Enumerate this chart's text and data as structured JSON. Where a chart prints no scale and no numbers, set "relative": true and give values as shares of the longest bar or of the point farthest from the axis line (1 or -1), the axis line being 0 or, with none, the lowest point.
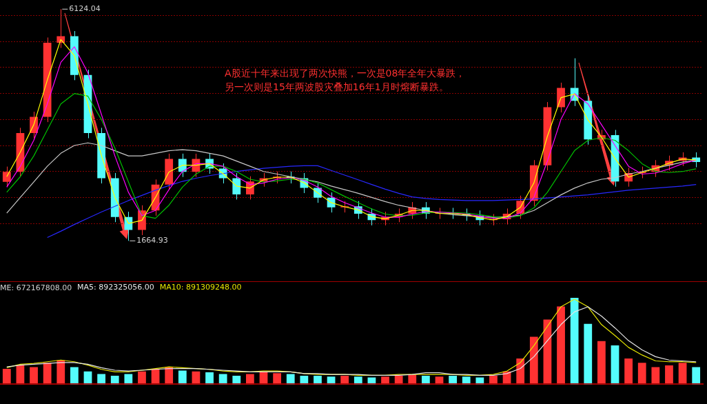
{
  "chart_data": [
    {
      "type": "candlestick",
      "categories": [
        null,
        null,
        null,
        null,
        null,
        null,
        null,
        null,
        null,
        null,
        null,
        null,
        null,
        null,
        null,
        null,
        null,
        null,
        null,
        null,
        null,
        null,
        null,
        null,
        null,
        null,
        null,
        null,
        null,
        null,
        null,
        null,
        null,
        null,
        null,
        null,
        null,
        null,
        null,
        null,
        null,
        null,
        null,
        null,
        null,
        null,
        null,
        null,
        null,
        null,
        null,
        null
      ],
      "ohlc": [
        [
          2800,
          3094,
          2700,
          2994
        ],
        [
          2994,
          3840,
          2894,
          3740
        ],
        [
          3740,
          4150,
          3640,
          4050
        ],
        [
          4050,
          5578,
          3950,
          5478
        ],
        [
          5478,
          6124.04,
          5378,
          5602
        ],
        [
          5602,
          5702,
          4757,
          4857
        ],
        [
          4857,
          4957,
          3640,
          3740
        ],
        [
          3740,
          3840,
          2770,
          2870
        ],
        [
          2870,
          2970,
          2025,
          2125
        ],
        [
          2125,
          2225,
          1664.93,
          1876
        ],
        [
          1876,
          2349,
          1776,
          2249
        ],
        [
          2249,
          2846,
          2149,
          2746
        ],
        [
          2746,
          3343,
          2646,
          3243
        ],
        [
          3243,
          3343,
          2894,
          2994
        ],
        [
          2994,
          3343,
          2894,
          3243
        ],
        [
          3243,
          3343,
          2956,
          3056
        ],
        [
          3056,
          3156,
          2770,
          2870
        ],
        [
          2870,
          2970,
          2460,
          2560
        ],
        [
          2560,
          2908,
          2460,
          2808
        ],
        [
          2808,
          2970,
          2708,
          2870
        ],
        [
          2870,
          3000,
          2770,
          2900
        ],
        [
          2900,
          3000,
          2770,
          2870
        ],
        [
          2870,
          2970,
          2584,
          2684
        ],
        [
          2684,
          2784,
          2397,
          2497
        ],
        [
          2497,
          2597,
          2211,
          2311
        ],
        [
          2311,
          2430,
          2211,
          2330
        ],
        [
          2330,
          2430,
          2087,
          2187
        ],
        [
          2187,
          2287,
          1963,
          2063
        ],
        [
          2063,
          2225,
          1963,
          2125
        ],
        [
          2125,
          2287,
          2025,
          2187
        ],
        [
          2187,
          2411,
          2087,
          2311
        ],
        [
          2311,
          2411,
          2087,
          2187
        ],
        [
          2187,
          2300,
          2087,
          2200
        ],
        [
          2200,
          2300,
          2087,
          2187
        ],
        [
          2187,
          2287,
          2050,
          2150
        ],
        [
          2150,
          2250,
          1963,
          2063
        ],
        [
          2063,
          2180,
          1963,
          2080
        ],
        [
          2080,
          2287,
          1980,
          2187
        ],
        [
          2187,
          2535,
          2087,
          2435
        ],
        [
          2435,
          3219,
          2335,
          3119
        ],
        [
          3119,
          4336,
          3019,
          4236
        ],
        [
          4236,
          4709,
          4136,
          4609
        ],
        [
          4609,
          5178,
          4260,
          4360
        ],
        [
          4360,
          4460,
          3516,
          3616
        ],
        [
          3616,
          3800,
          3516,
          3700
        ],
        [
          3700,
          3800,
          2708,
          2808
        ],
        [
          2808,
          3070,
          2708,
          2970
        ],
        [
          2970,
          3094,
          2870,
          2994
        ],
        [
          2994,
          3219,
          2894,
          3119
        ],
        [
          3119,
          3305,
          3019,
          3205
        ],
        [
          3205,
          3368,
          3105,
          3268
        ],
        [
          3268,
          3368,
          3081,
          3181
        ]
      ],
      "colors": [
        "#ff3232",
        "#ff3232",
        "#ff3232",
        "#ff3232",
        "#ff3232",
        "#54fcfc",
        "#54fcfc",
        "#54fcfc",
        "#54fcfc",
        "#54fcfc",
        "#ff3232",
        "#ff3232",
        "#ff3232",
        "#54fcfc",
        "#ff3232",
        "#54fcfc",
        "#54fcfc",
        "#54fcfc",
        "#ff3232",
        "#ff3232",
        "#ff3232",
        "#54fcfc",
        "#54fcfc",
        "#54fcfc",
        "#54fcfc",
        "#ff3232",
        "#54fcfc",
        "#54fcfc",
        "#ff3232",
        "#ff3232",
        "#ff3232",
        "#54fcfc",
        "#ff3232",
        "#54fcfc",
        "#54fcfc",
        "#54fcfc",
        "#ff3232",
        "#ff3232",
        "#ff3232",
        "#ff3232",
        "#ff3232",
        "#ff3232",
        "#54fcfc",
        "#54fcfc",
        "#ff3232",
        "#54fcfc",
        "#ff3232",
        "#ff3232",
        "#ff3232",
        "#ff3232",
        "#ff3232",
        "#54fcfc"
      ],
      "series": [
        {
          "type": "line",
          "color": "#ffff00",
          "values": [
            2900,
            3370,
            3900,
            4760,
            5540,
            5230,
            4300,
            3310,
            2500,
            2000,
            2060,
            2500,
            2990,
            3120,
            3120,
            3150,
            2960,
            2720,
            2680,
            2840,
            2890,
            2890,
            2780,
            2590,
            2400,
            2320,
            2260,
            2130,
            2090,
            2160,
            2250,
            2250,
            2190,
            2190,
            2170,
            2110,
            2070,
            2130,
            2310,
            2780,
            3680,
            4420,
            4490,
            3990,
            3660,
            3250,
            2890,
            2980,
            3060,
            3160,
            3240,
            3220
          ]
        },
        {
          "type": "line",
          "color": "#ff00ff",
          "values": [
            2700,
            3100,
            3600,
            4300,
            5100,
            5400,
            4900,
            4100,
            3300,
            2600,
            2150,
            2250,
            2650,
            3000,
            3150,
            3150,
            3100,
            2900,
            2750,
            2780,
            2850,
            2880,
            2830,
            2700,
            2520,
            2400,
            2300,
            2200,
            2120,
            2120,
            2180,
            2230,
            2220,
            2200,
            2180,
            2140,
            2100,
            2100,
            2200,
            2500,
            3200,
            4000,
            4500,
            4300,
            3900,
            3500,
            3100,
            2950,
            2970,
            3050,
            3150,
            3220
          ]
        },
        {
          "type": "line",
          "color": "#00c000",
          "values": [
            2600,
            2900,
            3300,
            3800,
            4300,
            4500,
            4450,
            4000,
            3450,
            2800,
            2150,
            2100,
            2350,
            2700,
            2950,
            3100,
            3100,
            3000,
            2850,
            2800,
            2820,
            2850,
            2850,
            2780,
            2650,
            2520,
            2400,
            2280,
            2180,
            2150,
            2160,
            2200,
            2220,
            2210,
            2200,
            2170,
            2130,
            2110,
            2150,
            2300,
            2600,
            3000,
            3400,
            3600,
            3650,
            3600,
            3400,
            3150,
            3000,
            2980,
            3000,
            3050
          ]
        },
        {
          "type": "line",
          "color": "#c8c8c8",
          "values": [
            2200,
            2500,
            2800,
            3100,
            3350,
            3500,
            3550,
            3500,
            3400,
            3300,
            3300,
            3350,
            3400,
            3420,
            3400,
            3350,
            3300,
            3200,
            3100,
            3000,
            2950,
            2900,
            2850,
            2800,
            2720,
            2650,
            2580,
            2500,
            2420,
            2350,
            2300,
            2250,
            2200,
            2170,
            2150,
            2130,
            2120,
            2130,
            2160,
            2250,
            2400,
            2550,
            2680,
            2780,
            2850,
            2880,
            2950,
            3000,
            3060,
            3120,
            3180,
            3220
          ]
        },
        {
          "type": "line",
          "color": "#2828ff",
          "values": [
            null,
            null,
            null,
            1730,
            1850,
            1980,
            2100,
            2220,
            2330,
            2440,
            2540,
            2640,
            2730,
            2810,
            2870,
            2920,
            2960,
            3000,
            3030,
            3060,
            3080,
            3100,
            3110,
            3110,
            3020,
            2930,
            2840,
            2750,
            2660,
            2580,
            2510,
            2480,
            2460,
            2450,
            2440,
            2440,
            2440,
            2450,
            2460,
            2470,
            2490,
            2510,
            2530,
            2550,
            2580,
            2610,
            2640,
            2660,
            2680,
            2700,
            2720,
            2750
          ]
        }
      ],
      "annotations": [
        "A股近十年来出现了两次快熊，一次是08年全年大暴跌，",
        "另一次则是15年两波股灾叠加16年1月时熔断暴跌。",
        "6124.04",
        "1664.93"
      ],
      "yticks": [
        {
          "value": 2000,
          "label": null
        },
        {
          "value": 2500,
          "label": null
        },
        {
          "value": 3000,
          "label": null
        },
        {
          "value": 3500,
          "label": null
        },
        {
          "value": 4000,
          "label": null
        },
        {
          "value": 4500,
          "label": null
        },
        {
          "value": 5000,
          "label": null
        },
        {
          "value": 5500,
          "label": null
        },
        {
          "value": 6000,
          "label": null
        }
      ],
      "grid": "y"
    },
    {
      "type": "bar",
      "relative": true,
      "categories": [
        null,
        null,
        null,
        null,
        null,
        null,
        null,
        null,
        null,
        null,
        null,
        null,
        null,
        null,
        null,
        null,
        null,
        null,
        null,
        null,
        null,
        null,
        null,
        null,
        null,
        null,
        null,
        null,
        null,
        null,
        null,
        null,
        null,
        null,
        null,
        null,
        null,
        null,
        null,
        null,
        null,
        null,
        null,
        null,
        null,
        null,
        null,
        null,
        null,
        null,
        null,
        null
      ],
      "values": [
        0.18,
        0.22,
        0.2,
        0.25,
        0.28,
        0.2,
        0.15,
        0.12,
        0.1,
        0.12,
        0.15,
        0.18,
        0.2,
        0.16,
        0.15,
        0.14,
        0.12,
        0.1,
        0.12,
        0.14,
        0.13,
        0.12,
        0.1,
        0.1,
        0.09,
        0.1,
        0.09,
        0.08,
        0.09,
        0.1,
        0.11,
        0.1,
        0.09,
        0.1,
        0.09,
        0.08,
        0.1,
        0.15,
        0.3,
        0.55,
        0.75,
        0.9,
        1,
        0.7,
        0.5,
        0.45,
        0.3,
        0.25,
        0.2,
        0.22,
        0.25,
        0.2
      ],
      "colors": [
        "#ff3232",
        "#ff3232",
        "#ff3232",
        "#ff3232",
        "#ff3232",
        "#54fcfc",
        "#54fcfc",
        "#54fcfc",
        "#54fcfc",
        "#54fcfc",
        "#ff3232",
        "#ff3232",
        "#ff3232",
        "#54fcfc",
        "#ff3232",
        "#54fcfc",
        "#54fcfc",
        "#54fcfc",
        "#ff3232",
        "#ff3232",
        "#ff3232",
        "#54fcfc",
        "#54fcfc",
        "#54fcfc",
        "#54fcfc",
        "#ff3232",
        "#54fcfc",
        "#54fcfc",
        "#ff3232",
        "#ff3232",
        "#ff3232",
        "#54fcfc",
        "#ff3232",
        "#54fcfc",
        "#54fcfc",
        "#54fcfc",
        "#ff3232",
        "#ff3232",
        "#ff3232",
        "#ff3232",
        "#ff3232",
        "#ff3232",
        "#54fcfc",
        "#54fcfc",
        "#ff3232",
        "#54fcfc",
        "#ff3232",
        "#ff3232",
        "#ff3232",
        "#ff3232",
        "#ff3232",
        "#54fcfc"
      ],
      "annotations": [
        "ME: 672167808.00"
      ]
    },
    {
      "type": "line",
      "relative": true,
      "categories": [
        null,
        null,
        null,
        null,
        null,
        null,
        null,
        null,
        null,
        null,
        null,
        null,
        null,
        null,
        null,
        null,
        null,
        null,
        null,
        null,
        null,
        null,
        null,
        null,
        null,
        null,
        null,
        null,
        null,
        null,
        null,
        null,
        null,
        null,
        null,
        null,
        null,
        null,
        null,
        null,
        null,
        null,
        null,
        null,
        null,
        null,
        null,
        null,
        null,
        null,
        null,
        null
      ],
      "series": [
        {
          "name": "MA5: 892325056.00",
          "color": "#e6e6e6",
          "values": [
            0.2,
            0.22,
            0.23,
            0.24,
            0.25,
            0.25,
            0.23,
            0.19,
            0.16,
            0.15,
            0.16,
            0.17,
            0.18,
            0.18,
            0.18,
            0.17,
            0.16,
            0.15,
            0.14,
            0.14,
            0.14,
            0.14,
            0.12,
            0.12,
            0.11,
            0.11,
            0.11,
            0.1,
            0.1,
            0.1,
            0.11,
            0.13,
            0.13,
            0.11,
            0.11,
            0.1,
            0.1,
            0.12,
            0.18,
            0.32,
            0.51,
            0.7,
            0.85,
            0.91,
            0.8,
            0.66,
            0.51,
            0.4,
            0.32,
            0.28,
            0.27,
            0.26
          ]
        },
        {
          "name": "MA10: 891309248.00",
          "color": "#e6e600",
          "values": [
            0.19,
            0.23,
            0.24,
            0.26,
            0.28,
            0.26,
            0.22,
            0.17,
            0.14,
            0.14,
            0.16,
            0.18,
            0.2,
            0.19,
            0.18,
            0.17,
            0.15,
            0.14,
            0.14,
            0.15,
            0.15,
            0.14,
            0.12,
            0.11,
            0.11,
            0.11,
            0.1,
            0.1,
            0.1,
            0.11,
            0.11,
            0.11,
            0.11,
            0.11,
            0.1,
            0.1,
            0.11,
            0.15,
            0.25,
            0.45,
            0.68,
            0.91,
            1,
            0.91,
            0.7,
            0.57,
            0.43,
            0.34,
            0.27,
            0.26,
            0.26,
            0.25
          ]
        }
      ]
    }
  ]
}
